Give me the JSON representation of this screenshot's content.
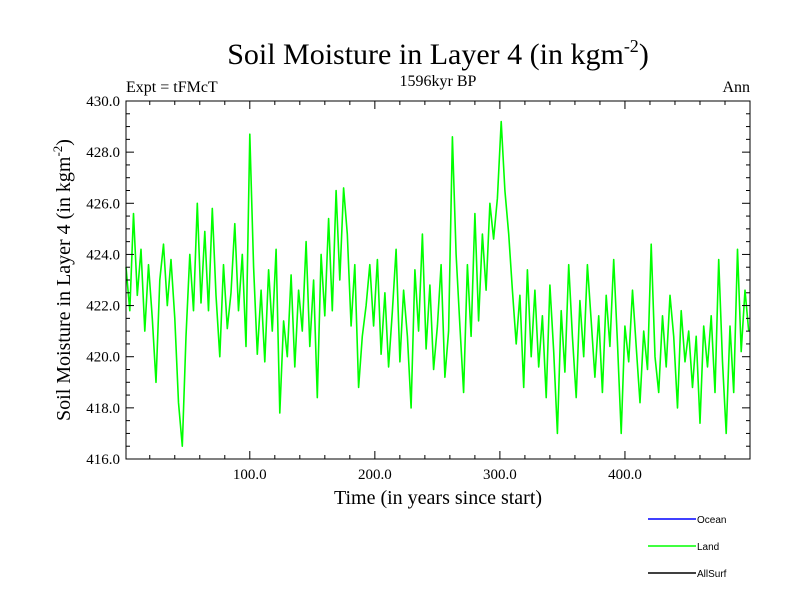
{
  "chart_data": {
    "type": "line",
    "title": "Soil Moisture in Layer 4 (in kgm",
    "title_sup": "-2",
    "title_close": ")",
    "left_label": "Expt = tFMcT",
    "center_label": "1596kyr BP",
    "right_label": "Ann",
    "xlabel": "Time (in years since start)",
    "ylabel": "Soil Moisture in Layer 4 (in kgm",
    "ylabel_sup": "-2",
    "ylabel_close": ")",
    "xlim": [
      1,
      500
    ],
    "ylim": [
      416.0,
      430.0
    ],
    "x_ticks": [
      100,
      200,
      300,
      400
    ],
    "x_tick_labels": [
      "100.0",
      "200.0",
      "300.0",
      "400.0"
    ],
    "y_ticks": [
      416,
      418,
      420,
      422,
      424,
      426,
      428,
      430
    ],
    "y_tick_labels": [
      "416.0",
      "418.0",
      "420.0",
      "422.0",
      "424.0",
      "426.0",
      "428.0",
      "430.0"
    ],
    "legend": [
      {
        "name": "Ocean",
        "color": "#0000ff"
      },
      {
        "name": "Land",
        "color": "#00ff00"
      },
      {
        "name": "AllSurf",
        "color": "#000000"
      }
    ],
    "series": [
      {
        "name": "Land",
        "color": "#00ff00",
        "x": [
          1,
          4,
          7,
          10,
          13,
          16,
          19,
          22,
          25,
          28,
          31,
          34,
          37,
          40,
          43,
          46,
          49,
          52,
          55,
          58,
          61,
          64,
          67,
          70,
          73,
          76,
          79,
          82,
          85,
          88,
          91,
          94,
          97,
          100,
          103,
          106,
          109,
          112,
          115,
          118,
          121,
          124,
          127,
          130,
          133,
          136,
          139,
          142,
          145,
          148,
          151,
          154,
          157,
          160,
          163,
          166,
          169,
          172,
          175,
          178,
          181,
          184,
          187,
          190,
          193,
          196,
          199,
          202,
          205,
          208,
          211,
          214,
          217,
          220,
          223,
          226,
          229,
          232,
          235,
          238,
          241,
          244,
          247,
          250,
          253,
          256,
          259,
          262,
          265,
          268,
          271,
          274,
          277,
          280,
          283,
          286,
          289,
          292,
          295,
          298,
          301,
          304,
          307,
          310,
          313,
          316,
          319,
          322,
          325,
          328,
          331,
          334,
          337,
          340,
          343,
          346,
          349,
          352,
          355,
          358,
          361,
          364,
          367,
          370,
          373,
          376,
          379,
          382,
          385,
          388,
          391,
          394,
          397,
          400,
          403,
          406,
          409,
          412,
          415,
          418,
          421,
          424,
          427,
          430,
          433,
          436,
          439,
          442,
          445,
          448,
          451,
          454,
          457,
          460,
          463,
          466,
          469,
          472,
          475,
          478,
          481,
          484,
          487,
          490,
          493,
          496,
          499
        ],
        "values": [
          423.5,
          421.8,
          425.6,
          422.4,
          424.2,
          421.0,
          423.6,
          421.5,
          419.0,
          423.0,
          424.4,
          422.0,
          423.8,
          421.5,
          418.2,
          416.5,
          420.8,
          424.0,
          421.8,
          426.0,
          422.1,
          424.9,
          421.8,
          425.8,
          422.4,
          420.0,
          423.6,
          421.1,
          422.5,
          425.2,
          421.8,
          424.0,
          420.4,
          428.7,
          423.5,
          420.1,
          422.6,
          419.8,
          423.4,
          421.0,
          424.2,
          417.8,
          421.4,
          420.0,
          423.2,
          419.6,
          422.6,
          421.0,
          424.5,
          420.4,
          423.0,
          418.4,
          424.0,
          421.6,
          425.4,
          421.8,
          426.5,
          423.0,
          426.6,
          424.8,
          421.2,
          423.6,
          418.8,
          420.8,
          422.0,
          423.6,
          421.2,
          423.8,
          420.1,
          422.5,
          419.6,
          421.8,
          424.2,
          419.8,
          422.6,
          420.8,
          418.0,
          423.4,
          421.0,
          424.8,
          420.3,
          422.8,
          419.5,
          421.2,
          423.6,
          419.2,
          421.0,
          428.6,
          424.0,
          421.2,
          418.6,
          423.6,
          420.8,
          425.6,
          421.4,
          424.8,
          422.6,
          426.0,
          424.6,
          426.2,
          429.2,
          426.5,
          424.8,
          422.6,
          420.5,
          422.4,
          418.8,
          423.4,
          420.0,
          422.6,
          419.6,
          421.6,
          418.4,
          422.8,
          420.2,
          417.0,
          421.8,
          419.4,
          423.6,
          420.8,
          418.4,
          422.2,
          420.0,
          423.6,
          421.4,
          419.2,
          421.6,
          418.6,
          422.4,
          420.4,
          423.8,
          420.6,
          417.0,
          421.2,
          419.8,
          422.6,
          420.4,
          418.2,
          421.0,
          419.5,
          424.4,
          420.0,
          418.6,
          421.6,
          419.6,
          422.4,
          420.8,
          418.0,
          421.8,
          419.8,
          421.0,
          418.8,
          420.8,
          417.4,
          421.2,
          419.6,
          421.6,
          418.6,
          423.8,
          419.8,
          417.0,
          421.2,
          418.6,
          424.2,
          420.2,
          422.6,
          421.0
        ]
      }
    ]
  }
}
